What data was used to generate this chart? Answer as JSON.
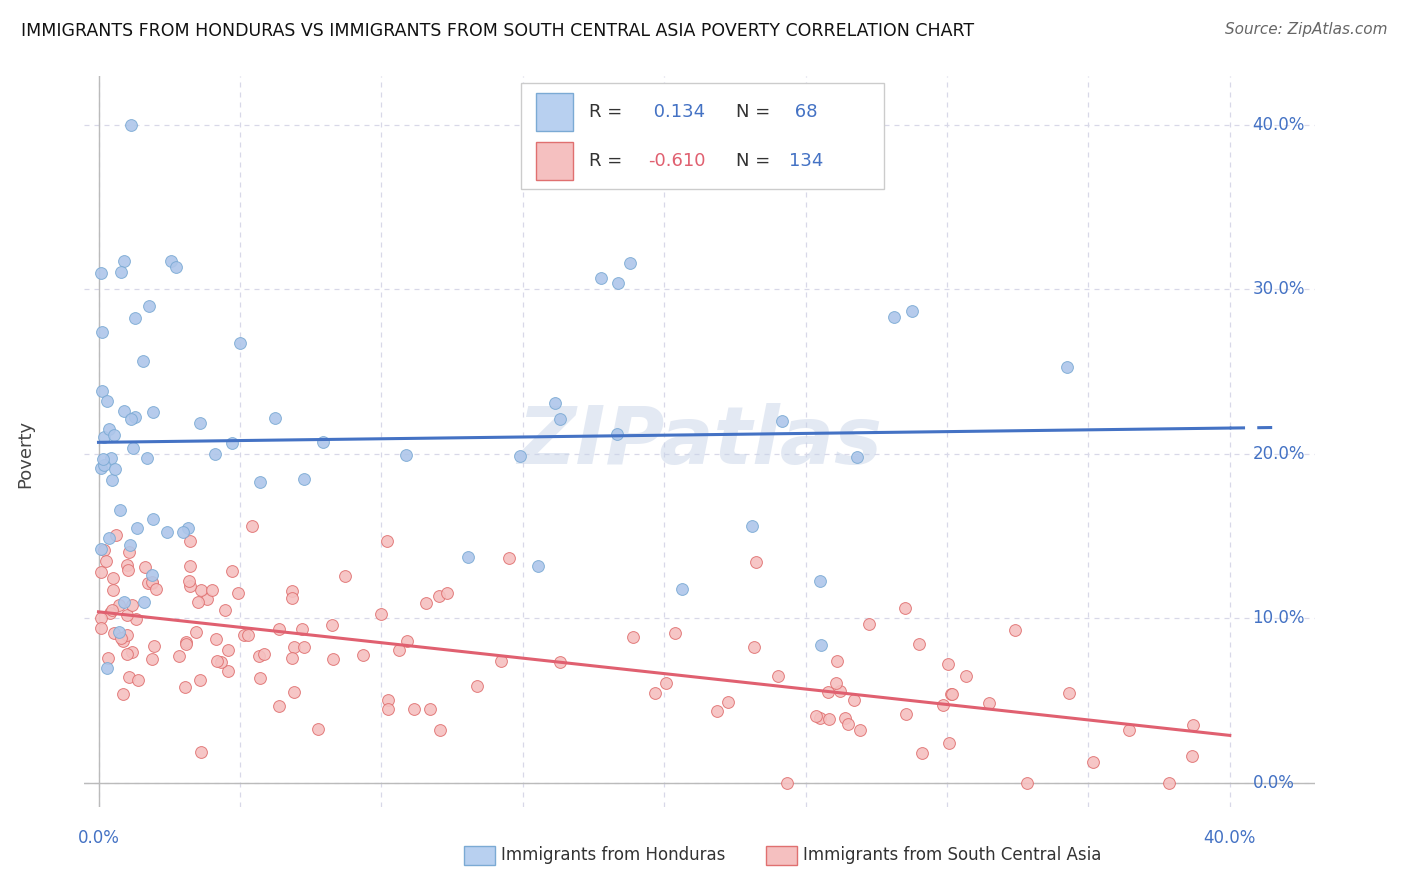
{
  "title": "IMMIGRANTS FROM HONDURAS VS IMMIGRANTS FROM SOUTH CENTRAL ASIA POVERTY CORRELATION CHART",
  "source": "Source: ZipAtlas.com",
  "ylabel": "Poverty",
  "series1": {
    "name": "Immigrants from Honduras",
    "R": 0.134,
    "N": 68,
    "scatter_color": "#aec6ea",
    "scatter_edge": "#7baad4",
    "line_color": "#4472c4",
    "legend_fill": "#b8d0f0",
    "legend_edge": "#7baad4"
  },
  "series2": {
    "name": "Immigrants from South Central Asia",
    "R": -0.61,
    "N": 134,
    "scatter_color": "#f5c0c0",
    "scatter_edge": "#e07070",
    "line_color": "#e06070",
    "legend_fill": "#f5c0c0",
    "legend_edge": "#e07070"
  },
  "yticks": [
    0.0,
    0.1,
    0.2,
    0.3,
    0.4
  ],
  "xticks": [
    0.0,
    0.05,
    0.1,
    0.15,
    0.2,
    0.25,
    0.3,
    0.35,
    0.4
  ],
  "xlim": [
    0.0,
    0.4
  ],
  "ylim": [
    0.0,
    0.4
  ],
  "background_color": "#ffffff",
  "grid_color": "#d8d8e8",
  "tick_color": "#4472c4",
  "legend_text_color": "#333333",
  "watermark_color": "#c8d4e8",
  "watermark_alpha": 0.5
}
